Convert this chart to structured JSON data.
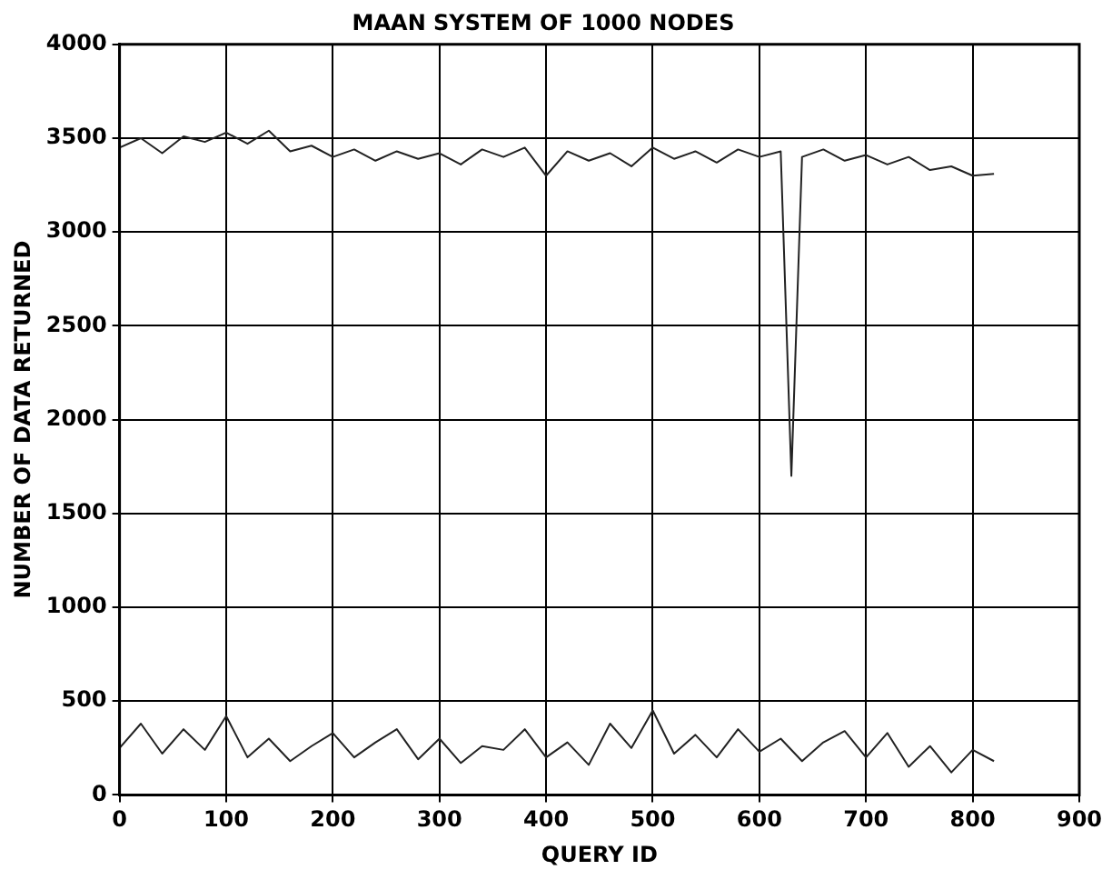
{
  "chart_data": {
    "type": "line",
    "title": "MAAN SYSTEM OF 1000 NODES",
    "xlabel": "QUERY ID",
    "ylabel": "NUMBER OF DATA RETURNED",
    "series": [
      {
        "color": "#222222",
        "x": [
          0,
          20,
          40,
          60,
          80,
          100,
          120,
          140,
          160,
          180,
          200,
          220,
          240,
          260,
          280,
          300,
          320,
          340,
          360,
          380,
          400,
          420,
          440,
          460,
          480,
          500,
          520,
          540,
          560,
          580,
          600,
          620,
          630,
          640,
          660,
          680,
          700,
          720,
          740,
          760,
          780,
          800,
          820
        ],
        "values": [
          3450,
          3500,
          3420,
          3510,
          3480,
          3530,
          3470,
          3540,
          3430,
          3460,
          3400,
          3440,
          3380,
          3430,
          3390,
          3420,
          3360,
          3440,
          3400,
          3450,
          3300,
          3430,
          3380,
          3420,
          3350,
          3450,
          3390,
          3430,
          3370,
          3440,
          3400,
          3430,
          1700,
          3400,
          3440,
          3380,
          3410,
          3360,
          3400,
          3330,
          3350,
          3300,
          3310
        ]
      },
      {
        "color": "#222222",
        "x": [
          0,
          20,
          40,
          60,
          80,
          100,
          120,
          140,
          160,
          180,
          200,
          220,
          240,
          260,
          280,
          300,
          320,
          340,
          360,
          380,
          400,
          420,
          440,
          460,
          480,
          500,
          520,
          540,
          560,
          580,
          600,
          620,
          640,
          660,
          680,
          700,
          720,
          740,
          760,
          780,
          800,
          820
        ],
        "values": [
          250,
          380,
          220,
          350,
          240,
          420,
          200,
          300,
          180,
          260,
          330,
          200,
          280,
          350,
          190,
          300,
          170,
          260,
          240,
          350,
          200,
          280,
          160,
          380,
          250,
          450,
          220,
          320,
          200,
          350,
          230,
          300,
          180,
          280,
          340,
          200,
          330,
          150,
          260,
          120,
          240,
          180
        ]
      }
    ],
    "xlim": [
      0,
      900
    ],
    "xticks": [
      0,
      100,
      200,
      300,
      400,
      500,
      600,
      700,
      800,
      900
    ],
    "ylim": [
      0,
      4000
    ],
    "yticks": [
      0,
      500,
      1000,
      1500,
      2000,
      2500,
      3000,
      3500,
      4000
    ],
    "grid": true,
    "line_style": "solid",
    "marker": "none",
    "legend": false
  }
}
